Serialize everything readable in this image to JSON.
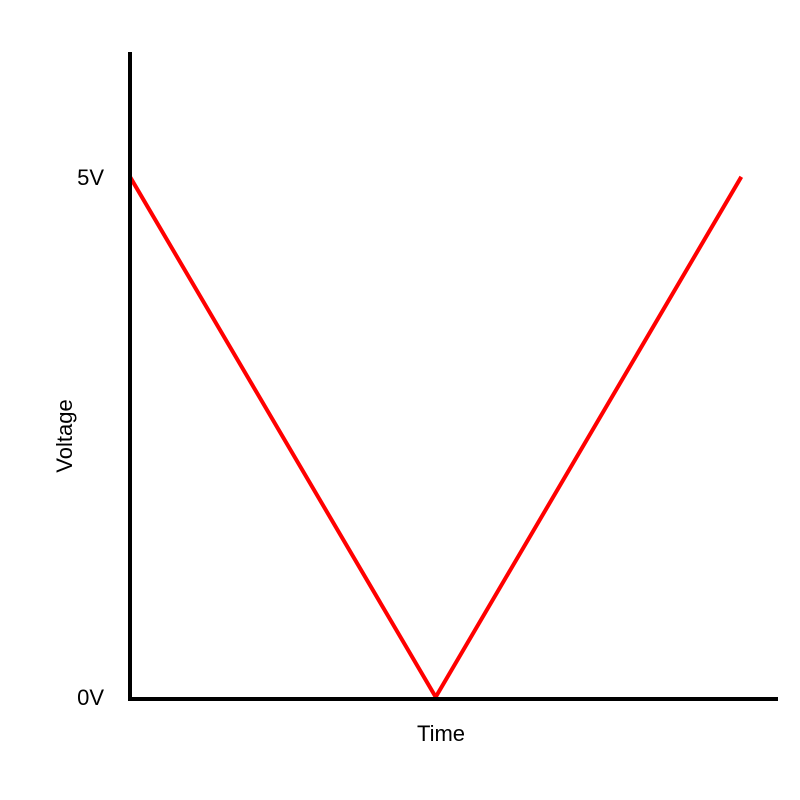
{
  "chart_data": {
    "type": "line",
    "xlabel": "Time",
    "ylabel": "Voltage",
    "x": [
      0,
      0.5,
      1
    ],
    "xlim": [
      0,
      1.06
    ],
    "ylim": [
      0,
      6.2
    ],
    "y_ticks": [
      {
        "value": 0,
        "label": "0V"
      },
      {
        "value": 5,
        "label": "5V"
      }
    ],
    "series": [
      {
        "values": [
          5,
          0,
          5
        ],
        "color": "#ff0000"
      }
    ],
    "grid": false,
    "legend": "none"
  }
}
